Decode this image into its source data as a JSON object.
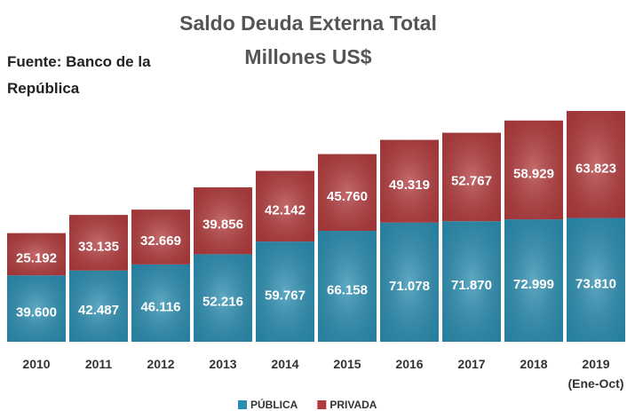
{
  "chart_data": {
    "type": "bar",
    "stacked": true,
    "title": "Saldo Deuda Externa Total",
    "subtitle": "Millones US$",
    "source": "Fuente: Banco de la República",
    "categories": [
      "2010",
      "2011",
      "2012",
      "2013",
      "2014",
      "2015",
      "2016",
      "2017",
      "2018",
      "2019 (Ene-Oct)"
    ],
    "series": [
      {
        "name": "PÚBLICA",
        "color": "#2a8db0",
        "values": [
          39600,
          42487,
          46116,
          52216,
          59767,
          66158,
          71078,
          71870,
          72999,
          73810
        ],
        "value_labels": [
          "39.600",
          "42.487",
          "46.116",
          "52.216",
          "59.767",
          "66.158",
          "71.078",
          "71.870",
          "72.999",
          "73.810"
        ]
      },
      {
        "name": "PRIVADA",
        "color": "#b13a3c",
        "values": [
          25192,
          33135,
          32669,
          39856,
          42142,
          45760,
          49319,
          52767,
          58929,
          63823
        ],
        "value_labels": [
          "25.192",
          "33.135",
          "32.669",
          "39.856",
          "42.142",
          "45.760",
          "49.319",
          "52.767",
          "58.929",
          "63.823"
        ]
      }
    ],
    "legend": "bottom"
  }
}
